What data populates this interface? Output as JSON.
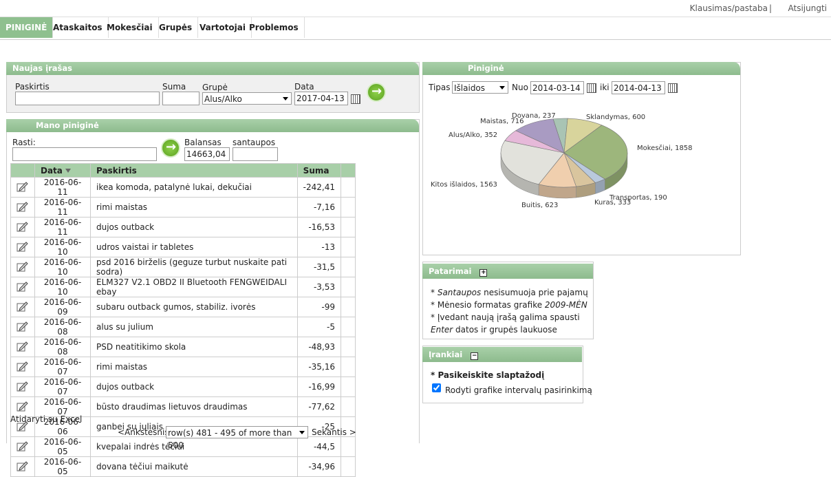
{
  "top_links": [
    "Klausimas/pastaba",
    "Atsijungti"
  ],
  "nav": [
    "PINIGINĖ",
    "Ataskaitos",
    "Mokesčiai",
    "Grupės",
    "Vartotojai",
    "Problemos"
  ],
  "new_entry": {
    "title": "Naujas įrašas",
    "labels": [
      "Paskirtis",
      "Suma",
      "Grupė",
      "Data"
    ],
    "group": "Alus/Alko",
    "date": "2017-04-13"
  },
  "wallet": {
    "title": "Mano piniginė",
    "search_label": "Rasti:",
    "balance_label": "Balansas",
    "balance": "14663,04",
    "savings_label": "santaupos",
    "columns": [
      "Data",
      "Paskirtis",
      "Suma"
    ],
    "rows": [
      [
        "2016-06-11",
        "ikea komoda, patalynė lukai, dekučiai",
        "-242,41"
      ],
      [
        "2016-06-11",
        "rimi maistas",
        "-7,16"
      ],
      [
        "2016-06-11",
        "dujos outback",
        "-16,53"
      ],
      [
        "2016-06-10",
        "udros vaistai ir tabletes",
        "-13"
      ],
      [
        "2016-06-10",
        "psd 2016 birželis (geguze turbut nuskaite pati sodra)",
        "-31,5"
      ],
      [
        "2016-06-10",
        "ELM327 V2.1 OBD2 II Bluetooth FENGWEIDALI ebay",
        "-3,53"
      ],
      [
        "2016-06-09",
        "subaru outback gumos, stabiliz. ivorės",
        "-99"
      ],
      [
        "2016-06-08",
        "alus su julium",
        "-5"
      ],
      [
        "2016-06-08",
        "PSD neatitikimo skola",
        "-48,93"
      ],
      [
        "2016-06-07",
        "rimi maistas",
        "-35,16"
      ],
      [
        "2016-06-07",
        "dujos outback",
        "-16,99"
      ],
      [
        "2016-06-07",
        "būsto draudimas lietuvos draudimas",
        "-77,62"
      ],
      [
        "2016-06-06",
        "ganbei su juliais",
        "-25"
      ],
      [
        "2016-06-05",
        "kvepalai indrės tėčiui",
        "-44,5"
      ],
      [
        "2016-06-05",
        "dovana tėčiui maikutė",
        "-34,96"
      ]
    ],
    "excel": "Atidaryti su Excel",
    "prev": "<Ankstesnis",
    "pager": "row(s) 481 - 495 of more than 500",
    "next": "Sekantis >"
  },
  "chart_panel": {
    "title": "Piniginė",
    "type_label": "Tipas",
    "type_value": "Išlaidos",
    "from_label": "Nuo",
    "from": "2014-03-14",
    "to_label": "iki",
    "to": "2014-04-13"
  },
  "chart_data": {
    "type": "pie",
    "categories": [
      "Dovana",
      "Sklandymas",
      "Mokesčiai",
      "Transportas",
      "Kuras",
      "Buitis",
      "Kitos išlaidos",
      "Alus/Alko",
      "Maistas"
    ],
    "values": [
      237,
      600,
      1858,
      190,
      333,
      623,
      1563,
      352,
      716
    ],
    "value_labels": [
      "Dovana, 237",
      "Sklandymas, 600",
      "Mokesčiai, 1858",
      "Transportas, 190",
      "Kuras, 333",
      "Buitis, 623",
      "Kitos išlaidos, 1563",
      "Alus/Alko, 352",
      "Maistas, 716"
    ],
    "colors": [
      "#a9c4b4",
      "#d8d49c",
      "#9db67c",
      "#b9c9dd",
      "#d9c59e",
      "#f0cfae",
      "#e2e2dc",
      "#e6b9d9",
      "#a99bc2"
    ]
  },
  "tips": {
    "title": "Patarimai",
    "items": [
      [
        "* ",
        "Santaupos",
        " nesisumuoja prie pajamų"
      ],
      [
        "* Mėnesio formatas grafike ",
        "2009-MĖN",
        ""
      ],
      [
        "* Įvedant naują įrašą galima spausti ",
        "Enter",
        " datos ir grupės laukuose"
      ]
    ]
  },
  "tools": {
    "title": "Įrankiai",
    "link": "* Pasikeiskite slaptažodį",
    "checkbox": "Rodyti grafike intervalų pasirinkimą"
  }
}
